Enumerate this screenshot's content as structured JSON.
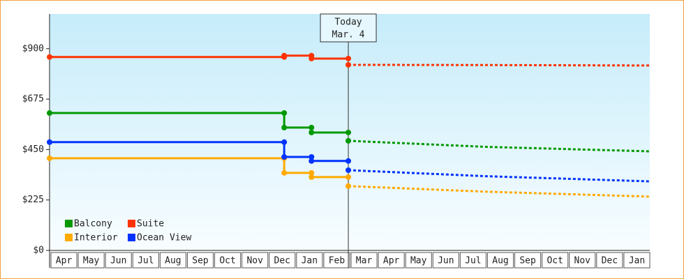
{
  "chart_data": {
    "type": "line",
    "xlim": [
      0,
      22
    ],
    "ylim": [
      0,
      1055
    ],
    "yticks": [
      {
        "value": 0,
        "label": "$0"
      },
      {
        "value": 225,
        "label": "$225"
      },
      {
        "value": 450,
        "label": "$450"
      },
      {
        "value": 675,
        "label": "$675"
      },
      {
        "value": 900,
        "label": "$900"
      }
    ],
    "categories": [
      "Apr",
      "May",
      "Jun",
      "Jul",
      "Aug",
      "Sep",
      "Oct",
      "Nov",
      "Dec",
      "Jan",
      "Feb",
      "Mar",
      "Apr",
      "May",
      "Jun",
      "Jul",
      "Aug",
      "Sep",
      "Oct",
      "Nov",
      "Dec",
      "Jan"
    ],
    "annotation": {
      "x": 10.95,
      "lines": [
        "Today",
        "Mar. 4"
      ]
    },
    "series": [
      {
        "name": "Balcony",
        "color": "#009900",
        "x": [
          0,
          8.6,
          8.6,
          9.6,
          9.6,
          10.95
        ],
        "values": [
          613,
          613,
          548,
          548,
          526,
          526
        ],
        "forecast_x": [
          10.95,
          16,
          22
        ],
        "forecast_values": [
          489,
          462,
          442
        ]
      },
      {
        "name": "Suite",
        "color": "#ff3300",
        "x": [
          0,
          8.6,
          8.6,
          9.6,
          9.6,
          10.95
        ],
        "values": [
          863,
          863,
          869,
          869,
          856,
          856
        ],
        "forecast_x": [
          10.95,
          16,
          22
        ],
        "forecast_values": [
          828,
          827,
          825
        ]
      },
      {
        "name": "Interior",
        "color": "#ffaa00",
        "x": [
          0,
          8.6,
          8.6,
          9.6,
          9.6,
          10.95
        ],
        "values": [
          411,
          411,
          346,
          346,
          327,
          327
        ],
        "forecast_x": [
          10.95,
          16,
          22
        ],
        "forecast_values": [
          287,
          262,
          240
        ]
      },
      {
        "name": "Ocean View",
        "color": "#0033ff",
        "x": [
          0,
          8.6,
          8.6,
          9.6,
          9.6,
          10.95
        ],
        "values": [
          483,
          483,
          417,
          417,
          399,
          399
        ],
        "forecast_x": [
          10.95,
          16,
          22
        ],
        "forecast_values": [
          358,
          331,
          308
        ]
      }
    ]
  }
}
